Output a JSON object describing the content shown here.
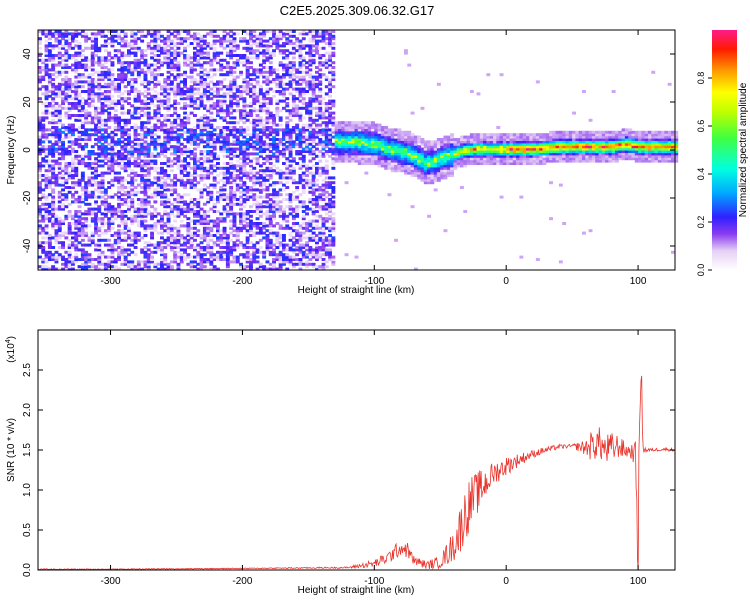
{
  "title": "C2E5.2025.309.06.32.G17",
  "chart_data": [
    {
      "type": "heatmap",
      "name": "spectrogram",
      "xlabel": "Height of straight line (km)",
      "ylabel": "Frequency (Hz)",
      "xlim": [
        -355,
        128
      ],
      "ylim": [
        -50,
        50
      ],
      "xticks": [
        -300,
        -200,
        -100,
        0,
        100
      ],
      "xtick_labels": [
        "-300",
        "-200",
        "-100",
        "0",
        "100"
      ],
      "yticks": [
        -40,
        -20,
        0,
        20,
        40
      ],
      "ytick_labels": [
        "-40",
        "-20",
        "0",
        "20",
        "40"
      ],
      "noise_region_x": [
        -355,
        -130
      ],
      "signal_trace": {
        "x": [
          -130,
          -115,
          -100,
          -90,
          -80,
          -70,
          -62,
          -55,
          -45,
          -35,
          -25,
          -15,
          0,
          20,
          40,
          60,
          80,
          90,
          100,
          115,
          128
        ],
        "freq_hz": [
          3,
          3,
          2,
          0,
          -1,
          -3,
          -6,
          -5,
          -3,
          -1,
          0,
          0,
          0,
          0,
          1,
          1,
          1,
          2,
          1,
          1,
          1
        ]
      },
      "colorbar": {
        "label": "Normalized spectral amplitude",
        "range": [
          0,
          1
        ],
        "ticks": [
          0.0,
          0.2,
          0.4,
          0.6,
          0.8
        ],
        "tick_labels": [
          "0.0",
          "0.2",
          "0.4",
          "0.6",
          "0.8"
        ]
      }
    },
    {
      "type": "line",
      "name": "snr",
      "xlabel": "Height of straight line (km)",
      "ylabel": "SNR (10 * v/v)",
      "y_multiplier_label": "(x10",
      "y_multiplier_exp": "4",
      "y_multiplier_close": ")",
      "xlim": [
        -355,
        128
      ],
      "ylim": [
        0,
        3.0
      ],
      "xticks": [
        -300,
        -200,
        -100,
        0,
        100
      ],
      "xtick_labels": [
        "-300",
        "-200",
        "-100",
        "0",
        "100"
      ],
      "yticks": [
        0.0,
        0.5,
        1.0,
        1.5,
        2.0,
        2.5
      ],
      "ytick_labels": [
        "0.0",
        "0.5",
        "1.0",
        "1.5",
        "2.0",
        "2.5"
      ],
      "color": "#e8342c",
      "x": [
        -355,
        -300,
        -200,
        -120,
        -100,
        -90,
        -80,
        -75,
        -70,
        -60,
        -50,
        -40,
        -35,
        -30,
        -25,
        -20,
        -10,
        0,
        10,
        20,
        30,
        40,
        50,
        60,
        65,
        70,
        75,
        80,
        85,
        90,
        95,
        98,
        100,
        102,
        104,
        110,
        120,
        128
      ],
      "y": [
        0.01,
        0.01,
        0.02,
        0.03,
        0.08,
        0.15,
        0.28,
        0.25,
        0.12,
        0.06,
        0.1,
        0.3,
        0.5,
        0.75,
        0.9,
        1.0,
        1.2,
        1.3,
        1.38,
        1.45,
        1.5,
        1.54,
        1.55,
        1.53,
        1.55,
        1.6,
        1.5,
        1.52,
        1.55,
        1.5,
        1.48,
        1.45,
        0.3,
        2.6,
        1.5,
        1.5,
        1.51,
        1.5
      ],
      "jitter": [
        0.005,
        0.005,
        0.005,
        0.01,
        0.05,
        0.08,
        0.1,
        0.1,
        0.06,
        0.05,
        0.08,
        0.2,
        0.3,
        0.35,
        0.3,
        0.25,
        0.15,
        0.12,
        0.08,
        0.05,
        0.04,
        0.03,
        0.02,
        0.1,
        0.2,
        0.2,
        0.2,
        0.2,
        0.15,
        0.1,
        0.1,
        0.15,
        0.6,
        0.4,
        0.05,
        0.02,
        0.02,
        0.02
      ]
    }
  ]
}
